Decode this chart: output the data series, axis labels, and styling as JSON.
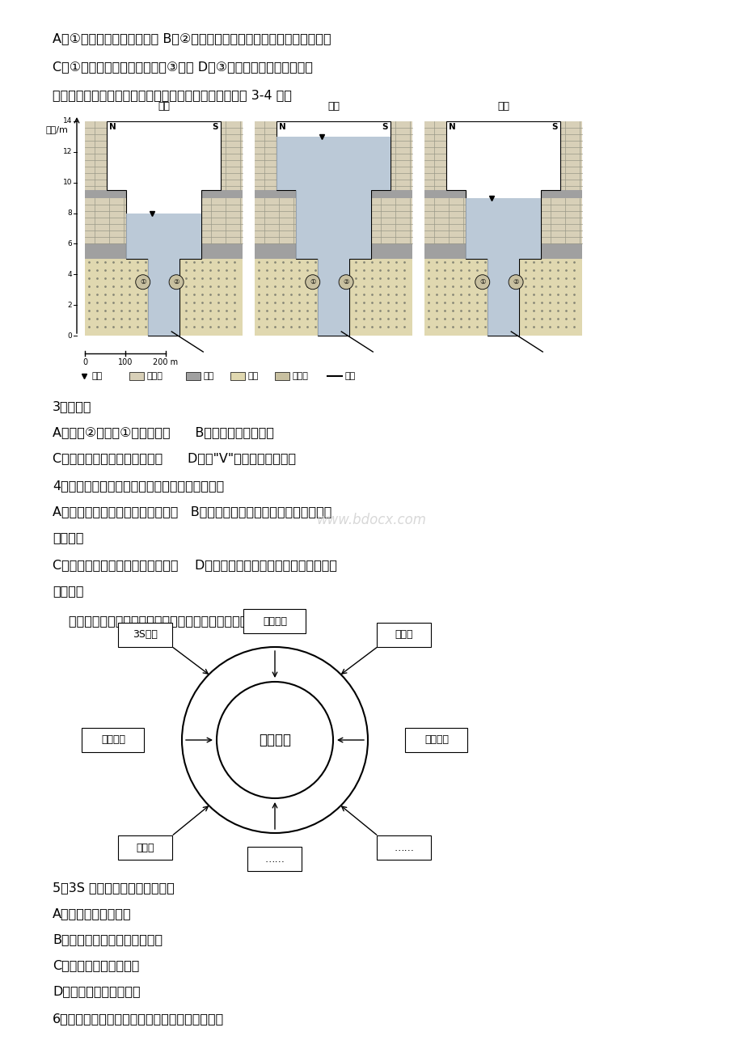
{
  "bg_color": "#ffffff",
  "page_width": 9.2,
  "page_height": 13.02,
  "dpi": 100,
  "fs_main": 11.5,
  "fs_small": 8.5,
  "fs_tiny": 7.0,
  "text_lines": {
    "line1": "A．①海域位于板块消亡边界 B．②洋流所在海域的大洋东海岸形成了大渔场",
    "line2": "C．①海域出现海雾的频率高于③海域 D．③海域附近蕴藏丰富的石油",
    "line3": "下图示意某河谷断面经历的一次洪水过程。读图，回答第 3-4 题。",
    "q3_head": "3．该河谷",
    "q3a": "A．岩层②比岩层①形成年代早      B．有可能成为地下河",
    "q3c": "C．是断层上发育形成的向斜谷      D．呈\"V\"型，适宜修建水库",
    "q4_head": "4．关于该河流的流向和本次洪水的说法正确的是",
    "q4a": "A．水位上升时，河流搬运作用减弱   B．若该河流在北半球，该河段流向为自",
    "q4a2": "西向东流",
    "q4c": "C．流量增大时，河流堆积作用增强    D．若该河流在南半球，该河段流向为自",
    "q4c2": "西向东流",
    "smart_intro": "下图示意新一代信息技术支撑下的智慧城市。读图回答 5-6 题。",
    "q5_head": "5．3S 技术为智慧城市建设提供",
    "q5a": "A．获取实时通讯信息",
    "q5b": "B．获取商业部门顾客流量数据",
    "q5c": "C．整合、集成网络信息",
    "q5d": "D．分析、管理空间信息",
    "q6_head": "6．下列不属于智慧城市建设对城市发展作用的是"
  },
  "diagram_labels": {
    "y_label": "水位/m",
    "stage1": "初期",
    "stage2": "中期",
    "stage3": "后期",
    "N": "N",
    "S": "S",
    "scale_0": "0",
    "scale_100": "100",
    "scale_200": "200 m",
    "legend_river": "河面",
    "legend_lime": "石灰岩",
    "legend_shale": "页岩",
    "legend_sand": "砂岩",
    "legend_dep": "沉积物",
    "legend_fault": "断层"
  },
  "smart_labels": {
    "center": "智慧城市",
    "top": "智慧政务",
    "left_top": "3S技术",
    "right_top": "物联网",
    "left": "智慧社区",
    "right": "智慧交通",
    "bot_left": "云计算",
    "bot_mid": "……",
    "bot_right": "……"
  },
  "watermark": "www.bdocx.com",
  "colors": {
    "limestone": "#d8d0b8",
    "shale": "#a0a0a0",
    "sandstone": "#e0d8b0",
    "water": "#b0c0d0",
    "fault_line": "#000000",
    "deposit_fill": "#c8c0a0"
  }
}
